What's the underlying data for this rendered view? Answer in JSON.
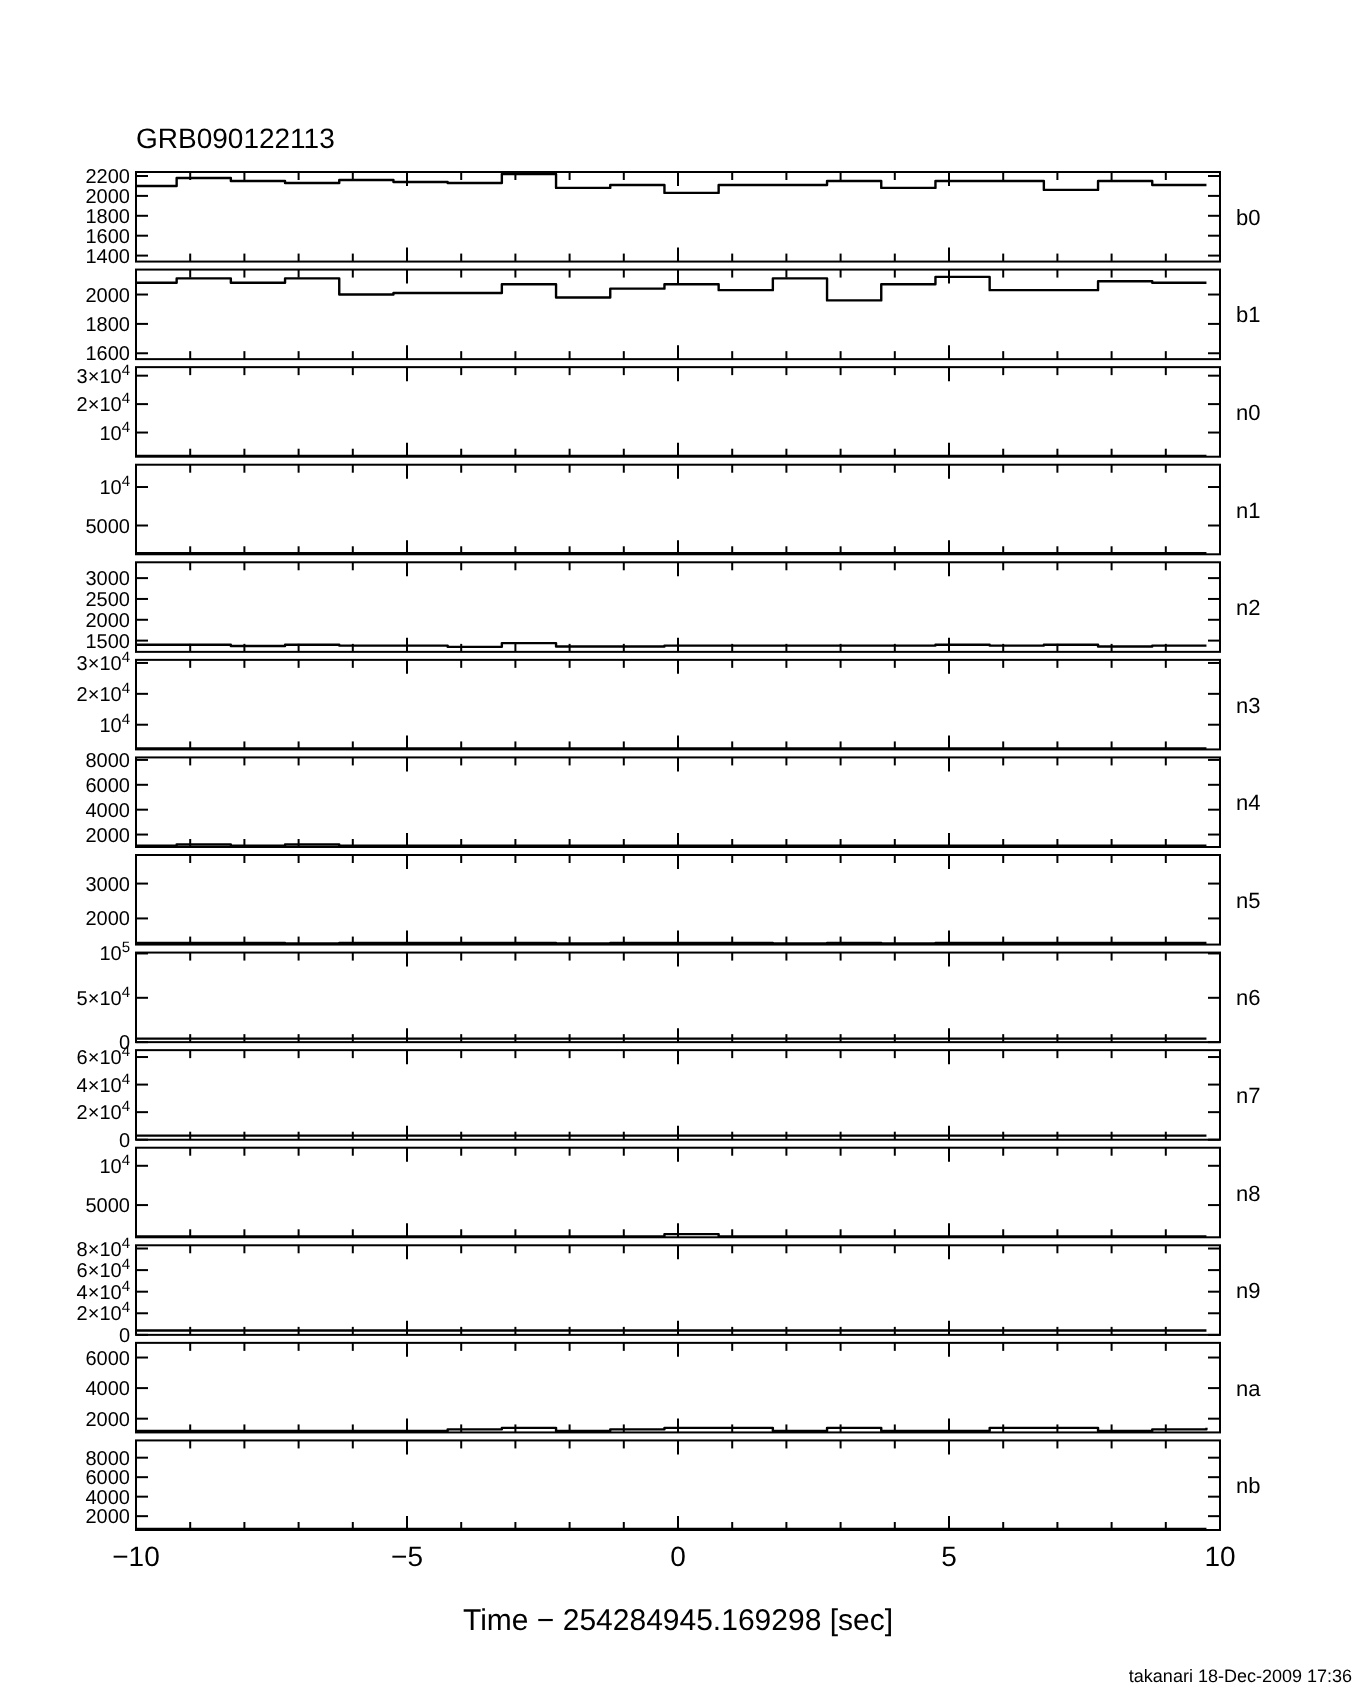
{
  "chart_data": [
    {
      "type": "step",
      "title": "GRB090122113",
      "ylabel": "b0",
      "tick_labels": "y",
      "xlim": [
        -10,
        10
      ],
      "x": [
        -10,
        -9.25,
        -8.25,
        -7.25,
        -6.25,
        -5.25,
        -4.25,
        -3.25,
        -2.25,
        -1.25,
        -0.25,
        0.75,
        1.75,
        2.75,
        3.75,
        4.75,
        5.75,
        6.75,
        7.75,
        8.75,
        9.75
      ],
      "xticks": [
        -10,
        {
          "value": -9,
          "label": null
        },
        {
          "value": -8,
          "label": null
        },
        {
          "value": -7,
          "label": null
        },
        {
          "value": -6,
          "label": null
        },
        -5,
        {
          "value": -4,
          "label": null
        },
        {
          "value": -3,
          "label": null
        },
        {
          "value": -2,
          "label": null
        },
        {
          "value": -1,
          "label": null
        },
        0,
        {
          "value": 1,
          "label": null
        },
        {
          "value": 2,
          "label": null
        },
        {
          "value": 3,
          "label": null
        },
        {
          "value": 4,
          "label": null
        },
        5,
        {
          "value": 6,
          "label": null
        },
        {
          "value": 7,
          "label": null
        },
        {
          "value": 8,
          "label": null
        },
        {
          "value": 9,
          "label": null
        },
        10
      ],
      "ylim": [
        1340,
        2240
      ],
      "yticks": [
        1400,
        1600,
        1800,
        2000,
        2200
      ],
      "values": [
        2100,
        2180,
        2150,
        2130,
        2160,
        2140,
        2130,
        2220,
        2080,
        2110,
        2030,
        2110,
        2110,
        2150,
        2080,
        2150,
        2150,
        2060,
        2150,
        2110,
        2110
      ]
    },
    {
      "type": "step",
      "ylabel": "b1",
      "tick_labels": "y",
      "xlim": [
        -10,
        10
      ],
      "x": [
        -10,
        -9.25,
        -8.25,
        -7.25,
        -6.25,
        -5.25,
        -4.25,
        -3.25,
        -2.25,
        -1.25,
        -0.25,
        0.75,
        1.75,
        2.75,
        3.75,
        4.75,
        5.75,
        6.75,
        7.75,
        8.75,
        9.75
      ],
      "xticks": [
        -10,
        {
          "value": -9,
          "label": null
        },
        {
          "value": -8,
          "label": null
        },
        {
          "value": -7,
          "label": null
        },
        {
          "value": -6,
          "label": null
        },
        -5,
        {
          "value": -4,
          "label": null
        },
        {
          "value": -3,
          "label": null
        },
        {
          "value": -2,
          "label": null
        },
        {
          "value": -1,
          "label": null
        },
        0,
        {
          "value": 1,
          "label": null
        },
        {
          "value": 2,
          "label": null
        },
        {
          "value": 3,
          "label": null
        },
        {
          "value": 4,
          "label": null
        },
        5,
        {
          "value": 6,
          "label": null
        },
        {
          "value": 7,
          "label": null
        },
        {
          "value": 8,
          "label": null
        },
        {
          "value": 9,
          "label": null
        },
        10
      ],
      "ylim": [
        1560,
        2170
      ],
      "yticks": [
        1600,
        1800,
        2000
      ],
      "values": [
        2080,
        2110,
        2080,
        2110,
        2000,
        2010,
        2010,
        2070,
        1980,
        2040,
        2070,
        2030,
        2110,
        1960,
        2070,
        2120,
        2030,
        2030,
        2090,
        2080,
        2080
      ]
    },
    {
      "type": "step",
      "ylabel": "n0",
      "tick_labels": "y",
      "xlim": [
        -10,
        10
      ],
      "x": [
        -10,
        -9.25,
        -8.25,
        -7.25,
        -6.25,
        -5.25,
        -4.25,
        -3.25,
        -2.25,
        -1.25,
        -0.25,
        0.75,
        1.75,
        2.75,
        3.75,
        4.75,
        5.75,
        6.75,
        7.75,
        8.75,
        9.75
      ],
      "xticks": [
        -10,
        {
          "value": -9,
          "label": null
        },
        {
          "value": -8,
          "label": null
        },
        {
          "value": -7,
          "label": null
        },
        {
          "value": -6,
          "label": null
        },
        -5,
        {
          "value": -4,
          "label": null
        },
        {
          "value": -3,
          "label": null
        },
        {
          "value": -2,
          "label": null
        },
        {
          "value": -1,
          "label": null
        },
        0,
        {
          "value": 1,
          "label": null
        },
        {
          "value": 2,
          "label": null
        },
        {
          "value": 3,
          "label": null
        },
        {
          "value": 4,
          "label": null
        },
        5,
        {
          "value": 6,
          "label": null
        },
        {
          "value": 7,
          "label": null
        },
        {
          "value": 8,
          "label": null
        },
        {
          "value": 9,
          "label": null
        },
        10
      ],
      "ylim": [
        1500,
        33000
      ],
      "yticks": [
        {
          "value": 10000,
          "label": "10$^{4}$"
        },
        {
          "value": 20000,
          "label": "2×10$^{4}$"
        },
        {
          "value": 30000,
          "label": "3×10$^{4}$"
        }
      ],
      "values": [
        1800,
        1800,
        1800,
        1800,
        1800,
        1800,
        1800,
        1800,
        1800,
        1800,
        1800,
        1800,
        1800,
        1800,
        1800,
        1800,
        1800,
        1800,
        1800,
        1800,
        1800
      ]
    },
    {
      "type": "step",
      "ylabel": "n1",
      "tick_labels": "y",
      "xlim": [
        -10,
        10
      ],
      "x": [
        -10,
        -9.25,
        -8.25,
        -7.25,
        -6.25,
        -5.25,
        -4.25,
        -3.25,
        -2.25,
        -1.25,
        -0.25,
        0.75,
        1.75,
        2.75,
        3.75,
        4.75,
        5.75,
        6.75,
        7.75,
        8.75,
        9.75
      ],
      "xticks": [
        -10,
        {
          "value": -9,
          "label": null
        },
        {
          "value": -8,
          "label": null
        },
        {
          "value": -7,
          "label": null
        },
        {
          "value": -6,
          "label": null
        },
        -5,
        {
          "value": -4,
          "label": null
        },
        {
          "value": -3,
          "label": null
        },
        {
          "value": -2,
          "label": null
        },
        {
          "value": -1,
          "label": null
        },
        0,
        {
          "value": 1,
          "label": null
        },
        {
          "value": 2,
          "label": null
        },
        {
          "value": 3,
          "label": null
        },
        {
          "value": 4,
          "label": null
        },
        5,
        {
          "value": 6,
          "label": null
        },
        {
          "value": 7,
          "label": null
        },
        {
          "value": 8,
          "label": null
        },
        {
          "value": 9,
          "label": null
        },
        10
      ],
      "ylim": [
        1260,
        12900
      ],
      "yticks": [
        5000,
        {
          "value": 10000,
          "label": "10$^{4}$"
        }
      ],
      "values": [
        1400,
        1400,
        1400,
        1400,
        1400,
        1400,
        1400,
        1400,
        1400,
        1400,
        1400,
        1400,
        1400,
        1400,
        1400,
        1400,
        1400,
        1400,
        1400,
        1400,
        1400
      ]
    },
    {
      "type": "step",
      "ylabel": "n2",
      "tick_labels": "y",
      "xlim": [
        -10,
        10
      ],
      "x": [
        -10,
        -9.25,
        -8.25,
        -7.25,
        -6.25,
        -5.25,
        -4.25,
        -3.25,
        -2.25,
        -1.25,
        -0.25,
        0.75,
        1.75,
        2.75,
        3.75,
        4.75,
        5.75,
        6.75,
        7.75,
        8.75,
        9.75
      ],
      "xticks": [
        -10,
        {
          "value": -9,
          "label": null
        },
        {
          "value": -8,
          "label": null
        },
        {
          "value": -7,
          "label": null
        },
        {
          "value": -6,
          "label": null
        },
        -5,
        {
          "value": -4,
          "label": null
        },
        {
          "value": -3,
          "label": null
        },
        {
          "value": -2,
          "label": null
        },
        {
          "value": -1,
          "label": null
        },
        0,
        {
          "value": 1,
          "label": null
        },
        {
          "value": 2,
          "label": null
        },
        {
          "value": 3,
          "label": null
        },
        {
          "value": 4,
          "label": null
        },
        5,
        {
          "value": 6,
          "label": null
        },
        {
          "value": 7,
          "label": null
        },
        {
          "value": 8,
          "label": null
        },
        {
          "value": 9,
          "label": null
        },
        10
      ],
      "ylim": [
        1230,
        3380
      ],
      "yticks": [
        1500,
        2000,
        2500,
        3000
      ],
      "values": [
        1400,
        1400,
        1370,
        1400,
        1380,
        1380,
        1350,
        1440,
        1360,
        1360,
        1380,
        1380,
        1380,
        1380,
        1380,
        1400,
        1380,
        1400,
        1360,
        1380,
        1380
      ]
    },
    {
      "type": "step",
      "ylabel": "n3",
      "tick_labels": "y",
      "xlim": [
        -10,
        10
      ],
      "x": [
        -10,
        -9.25,
        -8.25,
        -7.25,
        -6.25,
        -5.25,
        -4.25,
        -3.25,
        -2.25,
        -1.25,
        -0.25,
        0.75,
        1.75,
        2.75,
        3.75,
        4.75,
        5.75,
        6.75,
        7.75,
        8.75,
        9.75
      ],
      "xticks": [
        -10,
        {
          "value": -9,
          "label": null
        },
        {
          "value": -8,
          "label": null
        },
        {
          "value": -7,
          "label": null
        },
        {
          "value": -6,
          "label": null
        },
        -5,
        {
          "value": -4,
          "label": null
        },
        {
          "value": -3,
          "label": null
        },
        {
          "value": -2,
          "label": null
        },
        {
          "value": -1,
          "label": null
        },
        0,
        {
          "value": 1,
          "label": null
        },
        {
          "value": 2,
          "label": null
        },
        {
          "value": 3,
          "label": null
        },
        {
          "value": 4,
          "label": null
        },
        5,
        {
          "value": 6,
          "label": null
        },
        {
          "value": 7,
          "label": null
        },
        {
          "value": 8,
          "label": null
        },
        {
          "value": 9,
          "label": null
        },
        10
      ],
      "ylim": [
        2000,
        31000
      ],
      "yticks": [
        {
          "value": 10000,
          "label": "10$^{4}$"
        },
        {
          "value": 20000,
          "label": "2×10$^{4}$"
        },
        {
          "value": 30000,
          "label": "3×10$^{4}$"
        }
      ],
      "values": [
        2300,
        2300,
        2300,
        2300,
        2300,
        2300,
        2300,
        2300,
        2300,
        2300,
        2300,
        2300,
        2300,
        2300,
        2300,
        2300,
        2300,
        2300,
        2300,
        2300,
        2300
      ]
    },
    {
      "type": "step",
      "ylabel": "n4",
      "tick_labels": "y",
      "xlim": [
        -10,
        10
      ],
      "x": [
        -10,
        -9.25,
        -8.25,
        -7.25,
        -6.25,
        -5.25,
        -4.25,
        -3.25,
        -2.25,
        -1.25,
        -0.25,
        0.75,
        1.75,
        2.75,
        3.75,
        4.75,
        5.75,
        6.75,
        7.75,
        8.75,
        9.75
      ],
      "xticks": [
        -10,
        {
          "value": -9,
          "label": null
        },
        {
          "value": -8,
          "label": null
        },
        {
          "value": -7,
          "label": null
        },
        {
          "value": -6,
          "label": null
        },
        -5,
        {
          "value": -4,
          "label": null
        },
        {
          "value": -3,
          "label": null
        },
        {
          "value": -2,
          "label": null
        },
        {
          "value": -1,
          "label": null
        },
        0,
        {
          "value": 1,
          "label": null
        },
        {
          "value": 2,
          "label": null
        },
        {
          "value": 3,
          "label": null
        },
        {
          "value": 4,
          "label": null
        },
        5,
        {
          "value": 6,
          "label": null
        },
        {
          "value": 7,
          "label": null
        },
        {
          "value": 8,
          "label": null
        },
        {
          "value": 9,
          "label": null
        },
        10
      ],
      "ylim": [
        1000,
        8200
      ],
      "yticks": [
        2000,
        4000,
        6000,
        8000
      ],
      "values": [
        1100,
        1200,
        1100,
        1200,
        1100,
        1100,
        1100,
        1100,
        1100,
        1100,
        1100,
        1100,
        1100,
        1100,
        1100,
        1100,
        1100,
        1100,
        1100,
        1100,
        1100
      ]
    },
    {
      "type": "step",
      "ylabel": "n5",
      "tick_labels": "y",
      "xlim": [
        -10,
        10
      ],
      "x": [
        -10,
        -9.25,
        -8.25,
        -7.25,
        -6.25,
        -5.25,
        -4.25,
        -3.25,
        -2.25,
        -1.25,
        -0.25,
        0.75,
        1.75,
        2.75,
        3.75,
        4.75,
        5.75,
        6.75,
        7.75,
        8.75,
        9.75
      ],
      "xticks": [
        -10,
        {
          "value": -9,
          "label": null
        },
        {
          "value": -8,
          "label": null
        },
        {
          "value": -7,
          "label": null
        },
        {
          "value": -6,
          "label": null
        },
        -5,
        {
          "value": -4,
          "label": null
        },
        {
          "value": -3,
          "label": null
        },
        {
          "value": -2,
          "label": null
        },
        {
          "value": -1,
          "label": null
        },
        0,
        {
          "value": 1,
          "label": null
        },
        {
          "value": 2,
          "label": null
        },
        {
          "value": 3,
          "label": null
        },
        {
          "value": 4,
          "label": null
        },
        5,
        {
          "value": 6,
          "label": null
        },
        {
          "value": 7,
          "label": null
        },
        {
          "value": 8,
          "label": null
        },
        {
          "value": 9,
          "label": null
        },
        10
      ],
      "ylim": [
        1250,
        3820
      ],
      "yticks": [
        2000,
        3000
      ],
      "values": [
        1300,
        1300,
        1300,
        1280,
        1300,
        1300,
        1300,
        1300,
        1280,
        1300,
        1300,
        1300,
        1280,
        1300,
        1280,
        1300,
        1300,
        1300,
        1300,
        1300,
        1300
      ]
    },
    {
      "type": "step",
      "ylabel": "n6",
      "tick_labels": "y",
      "xlim": [
        -10,
        10
      ],
      "x": [
        -10,
        -9.25,
        -8.25,
        -7.25,
        -6.25,
        -5.25,
        -4.25,
        -3.25,
        -2.25,
        -1.25,
        -0.25,
        0.75,
        1.75,
        2.75,
        3.75,
        4.75,
        5.75,
        6.75,
        7.75,
        8.75,
        9.75
      ],
      "xticks": [
        -10,
        {
          "value": -9,
          "label": null
        },
        {
          "value": -8,
          "label": null
        },
        {
          "value": -7,
          "label": null
        },
        {
          "value": -6,
          "label": null
        },
        -5,
        {
          "value": -4,
          "label": null
        },
        {
          "value": -3,
          "label": null
        },
        {
          "value": -2,
          "label": null
        },
        {
          "value": -1,
          "label": null
        },
        0,
        {
          "value": 1,
          "label": null
        },
        {
          "value": 2,
          "label": null
        },
        {
          "value": 3,
          "label": null
        },
        {
          "value": 4,
          "label": null
        },
        5,
        {
          "value": 6,
          "label": null
        },
        {
          "value": 7,
          "label": null
        },
        {
          "value": 8,
          "label": null
        },
        {
          "value": 9,
          "label": null
        },
        10
      ],
      "ylim": [
        0,
        101000
      ],
      "yticks": [
        0,
        {
          "value": 50000,
          "label": "5×10$^{4}$"
        },
        {
          "value": 100000,
          "label": "10$^{5}$"
        }
      ],
      "values": [
        4000,
        4000,
        4000,
        4000,
        4000,
        4000,
        4000,
        4000,
        4000,
        4000,
        4000,
        4000,
        4000,
        4000,
        4000,
        4000,
        4000,
        4000,
        4000,
        4000,
        4000
      ]
    },
    {
      "type": "step",
      "ylabel": "n7",
      "tick_labels": "y",
      "xlim": [
        -10,
        10
      ],
      "x": [
        -10,
        -9.25,
        -8.25,
        -7.25,
        -6.25,
        -5.25,
        -4.25,
        -3.25,
        -2.25,
        -1.25,
        -0.25,
        0.75,
        1.75,
        2.75,
        3.75,
        4.75,
        5.75,
        6.75,
        7.75,
        8.75,
        9.75
      ],
      "xticks": [
        -10,
        {
          "value": -9,
          "label": null
        },
        {
          "value": -8,
          "label": null
        },
        {
          "value": -7,
          "label": null
        },
        {
          "value": -6,
          "label": null
        },
        -5,
        {
          "value": -4,
          "label": null
        },
        {
          "value": -3,
          "label": null
        },
        {
          "value": -2,
          "label": null
        },
        {
          "value": -1,
          "label": null
        },
        0,
        {
          "value": 1,
          "label": null
        },
        {
          "value": 2,
          "label": null
        },
        {
          "value": 3,
          "label": null
        },
        {
          "value": 4,
          "label": null
        },
        5,
        {
          "value": 6,
          "label": null
        },
        {
          "value": 7,
          "label": null
        },
        {
          "value": 8,
          "label": null
        },
        {
          "value": 9,
          "label": null
        },
        10
      ],
      "ylim": [
        0,
        65000
      ],
      "yticks": [
        0,
        {
          "value": 20000,
          "label": "2×10$^{4}$"
        },
        {
          "value": 40000,
          "label": "4×10$^{4}$"
        },
        {
          "value": 60000,
          "label": "6×10$^{4}$"
        }
      ],
      "values": [
        3000,
        3000,
        3000,
        3000,
        3000,
        3000,
        3000,
        3000,
        3000,
        3000,
        3000,
        3000,
        3000,
        3000,
        3000,
        3000,
        3000,
        3000,
        3000,
        3000,
        3000
      ]
    },
    {
      "type": "step",
      "ylabel": "n8",
      "tick_labels": "y",
      "xlim": [
        -10,
        10
      ],
      "x": [
        -10,
        -9.25,
        -8.25,
        -7.25,
        -6.25,
        -5.25,
        -4.25,
        -3.25,
        -2.25,
        -1.25,
        -0.25,
        0.75,
        1.75,
        2.75,
        3.75,
        4.75,
        5.75,
        6.75,
        7.75,
        8.75,
        9.75
      ],
      "xticks": [
        -10,
        {
          "value": -9,
          "label": null
        },
        {
          "value": -8,
          "label": null
        },
        {
          "value": -7,
          "label": null
        },
        {
          "value": -6,
          "label": null
        },
        -5,
        {
          "value": -4,
          "label": null
        },
        {
          "value": -3,
          "label": null
        },
        {
          "value": -2,
          "label": null
        },
        {
          "value": -1,
          "label": null
        },
        0,
        {
          "value": 1,
          "label": null
        },
        {
          "value": 2,
          "label": null
        },
        {
          "value": 3,
          "label": null
        },
        {
          "value": 4,
          "label": null
        },
        5,
        {
          "value": 6,
          "label": null
        },
        {
          "value": 7,
          "label": null
        },
        {
          "value": 8,
          "label": null
        },
        {
          "value": 9,
          "label": null
        },
        10
      ],
      "ylim": [
        900,
        12300
      ],
      "yticks": [
        5000,
        {
          "value": 10000,
          "label": "10$^{4}$"
        }
      ],
      "values": [
        1000,
        1000,
        1000,
        1000,
        1000,
        1000,
        1000,
        1000,
        1000,
        1000,
        1300,
        1000,
        1000,
        1000,
        1000,
        1000,
        1000,
        1000,
        1000,
        1000,
        1000
      ]
    },
    {
      "type": "step",
      "ylabel": "n9",
      "tick_labels": "y",
      "xlim": [
        -10,
        10
      ],
      "x": [
        -10,
        -9.25,
        -8.25,
        -7.25,
        -6.25,
        -5.25,
        -4.25,
        -3.25,
        -2.25,
        -1.25,
        -0.25,
        0.75,
        1.75,
        2.75,
        3.75,
        4.75,
        5.75,
        6.75,
        7.75,
        8.75,
        9.75
      ],
      "xticks": [
        -10,
        {
          "value": -9,
          "label": null
        },
        {
          "value": -8,
          "label": null
        },
        {
          "value": -7,
          "label": null
        },
        {
          "value": -6,
          "label": null
        },
        -5,
        {
          "value": -4,
          "label": null
        },
        {
          "value": -3,
          "label": null
        },
        {
          "value": -2,
          "label": null
        },
        {
          "value": -1,
          "label": null
        },
        0,
        {
          "value": 1,
          "label": null
        },
        {
          "value": 2,
          "label": null
        },
        {
          "value": 3,
          "label": null
        },
        {
          "value": 4,
          "label": null
        },
        5,
        {
          "value": 6,
          "label": null
        },
        {
          "value": 7,
          "label": null
        },
        {
          "value": 8,
          "label": null
        },
        {
          "value": 9,
          "label": null
        },
        10
      ],
      "ylim": [
        0,
        83000
      ],
      "yticks": [
        0,
        {
          "value": 20000,
          "label": "2×10$^{4}$"
        },
        {
          "value": 40000,
          "label": "4×10$^{4}$"
        },
        {
          "value": 60000,
          "label": "6×10$^{4}$"
        },
        {
          "value": 80000,
          "label": "8×10$^{4}$"
        }
      ],
      "values": [
        4000,
        4000,
        4000,
        4000,
        4000,
        4000,
        4000,
        4000,
        4000,
        4000,
        4000,
        4000,
        4000,
        4000,
        4000,
        4000,
        4000,
        4000,
        4000,
        4000,
        4000
      ]
    },
    {
      "type": "step",
      "ylabel": "na",
      "tick_labels": "y",
      "xlim": [
        -10,
        10
      ],
      "x": [
        -10,
        -9.25,
        -8.25,
        -7.25,
        -6.25,
        -5.25,
        -4.25,
        -3.25,
        -2.25,
        -1.25,
        -0.25,
        0.75,
        1.75,
        2.75,
        3.75,
        4.75,
        5.75,
        6.75,
        7.75,
        8.75,
        9.75
      ],
      "xticks": [
        -10,
        {
          "value": -9,
          "label": null
        },
        {
          "value": -8,
          "label": null
        },
        {
          "value": -7,
          "label": null
        },
        {
          "value": -6,
          "label": null
        },
        -5,
        {
          "value": -4,
          "label": null
        },
        {
          "value": -3,
          "label": null
        },
        {
          "value": -2,
          "label": null
        },
        {
          "value": -1,
          "label": null
        },
        0,
        {
          "value": 1,
          "label": null
        },
        {
          "value": 2,
          "label": null
        },
        {
          "value": 3,
          "label": null
        },
        {
          "value": 4,
          "label": null
        },
        5,
        {
          "value": 6,
          "label": null
        },
        {
          "value": 7,
          "label": null
        },
        {
          "value": 8,
          "label": null
        },
        {
          "value": 9,
          "label": null
        },
        10
      ],
      "ylim": [
        1100,
        6960
      ],
      "yticks": [
        2000,
        4000,
        6000
      ],
      "values": [
        1200,
        1200,
        1200,
        1200,
        1200,
        1200,
        1300,
        1400,
        1200,
        1300,
        1400,
        1400,
        1200,
        1400,
        1200,
        1200,
        1400,
        1400,
        1200,
        1300,
        1400
      ]
    },
    {
      "type": "step",
      "ylabel": "nb",
      "xlabel": "Time − 254284945.169298 [sec]",
      "annotations": [
        "takanari 18-Dec-2009 17:36"
      ],
      "xlim": [
        -10,
        10
      ],
      "x": [
        -10,
        -9.25,
        -8.25,
        -7.25,
        -6.25,
        -5.25,
        -4.25,
        -3.25,
        -2.25,
        -1.25,
        -0.25,
        0.75,
        1.75,
        2.75,
        3.75,
        4.75,
        5.75,
        6.75,
        7.75,
        8.75,
        9.75
      ],
      "xticks": [
        {
          "value": -10,
          "label": "−10"
        },
        {
          "value": -9,
          "label": null
        },
        {
          "value": -8,
          "label": null
        },
        {
          "value": -7,
          "label": null
        },
        {
          "value": -6,
          "label": null
        },
        {
          "value": -5,
          "label": "−5"
        },
        {
          "value": -4,
          "label": null
        },
        {
          "value": -3,
          "label": null
        },
        {
          "value": -2,
          "label": null
        },
        {
          "value": -1,
          "label": null
        },
        0,
        {
          "value": 1,
          "label": null
        },
        {
          "value": 2,
          "label": null
        },
        {
          "value": 3,
          "label": null
        },
        {
          "value": 4,
          "label": null
        },
        5,
        {
          "value": 6,
          "label": null
        },
        {
          "value": 7,
          "label": null
        },
        {
          "value": 8,
          "label": null
        },
        {
          "value": 9,
          "label": null
        },
        10
      ],
      "ylim": [
        580,
        9770
      ],
      "yticks": [
        2000,
        4000,
        6000,
        8000
      ],
      "values": [
        700,
        700,
        700,
        700,
        700,
        700,
        700,
        700,
        700,
        700,
        700,
        700,
        700,
        700,
        700,
        700,
        700,
        700,
        700,
        700,
        700
      ]
    }
  ]
}
